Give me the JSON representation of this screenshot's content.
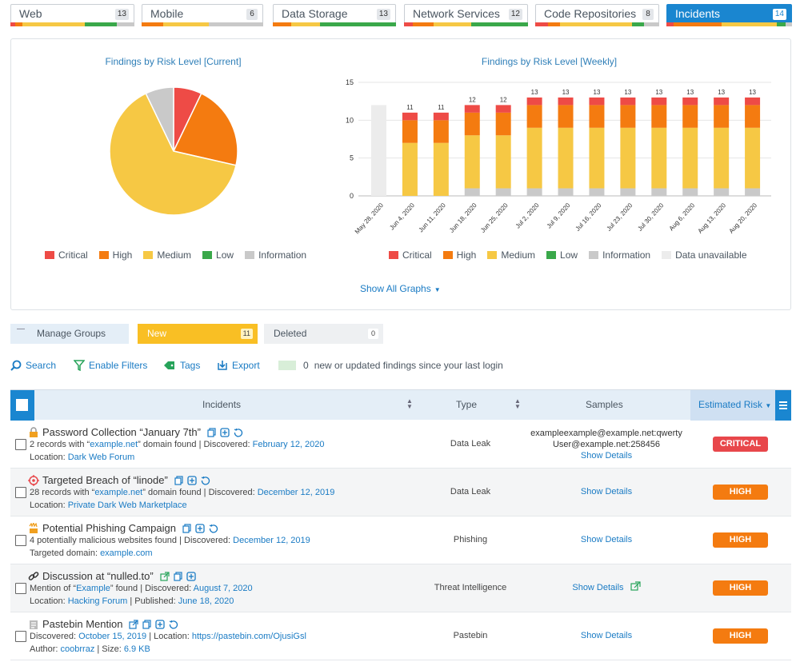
{
  "colors": {
    "critical": "#ee4b46",
    "high": "#f47b10",
    "medium": "#f6c844",
    "low": "#3aa84a",
    "information": "#c9c9c9",
    "unavailable": "#ececec",
    "accent": "#1a86d0"
  },
  "category_tabs": [
    {
      "label": "Web",
      "count": "13",
      "bar": [
        [
          0.04,
          "#ee4b46"
        ],
        [
          0.06,
          "#f47b10"
        ],
        [
          0.5,
          "#f6c844"
        ],
        [
          0.26,
          "#3aa84a"
        ],
        [
          0.14,
          "#c9c9c9"
        ]
      ]
    },
    {
      "label": "Mobile",
      "count": "6",
      "bar": [
        [
          0.18,
          "#f47b10"
        ],
        [
          0.37,
          "#f6c844"
        ],
        [
          0.45,
          "#c9c9c9"
        ]
      ]
    },
    {
      "label": "Data Storage",
      "count": "13",
      "bar": [
        [
          0.15,
          "#f47b10"
        ],
        [
          0.23,
          "#f6c844"
        ],
        [
          0.62,
          "#3aa84a"
        ]
      ]
    },
    {
      "label": "Network Services",
      "count": "12",
      "bar": [
        [
          0.07,
          "#ee4b46"
        ],
        [
          0.17,
          "#f47b10"
        ],
        [
          0.3,
          "#f6c844"
        ],
        [
          0.46,
          "#3aa84a"
        ]
      ]
    },
    {
      "label": "Code Repositories",
      "count": "8",
      "bar": [
        [
          0.1,
          "#ee4b46"
        ],
        [
          0.1,
          "#f47b10"
        ],
        [
          0.58,
          "#f6c844"
        ],
        [
          0.1,
          "#3aa84a"
        ],
        [
          0.12,
          "#c9c9c9"
        ]
      ]
    },
    {
      "label": "Incidents",
      "count": "14",
      "active": true,
      "bar": [
        [
          0.06,
          "#ee4b46"
        ],
        [
          0.38,
          "#f47b10"
        ],
        [
          0.44,
          "#f6c844"
        ],
        [
          0.07,
          "#3aa84a"
        ],
        [
          0.05,
          "#c9c9c9"
        ]
      ]
    }
  ],
  "chart_data": [
    {
      "type": "pie",
      "title": "Findings by Risk Level [Current]",
      "slices": [
        {
          "name": "Critical",
          "value": 1
        },
        {
          "name": "High",
          "value": 3
        },
        {
          "name": "Medium",
          "value": 9
        },
        {
          "name": "Low",
          "value": 0
        },
        {
          "name": "Information",
          "value": 1
        }
      ],
      "legend": [
        "Critical",
        "High",
        "Medium",
        "Low",
        "Information"
      ],
      "legend_position": "bottom"
    },
    {
      "type": "bar",
      "stacked": true,
      "title": "Findings by Risk Level [Weekly]",
      "categories": [
        "May 28, 2020",
        "Jun 4, 2020",
        "Jun 11, 2020",
        "Jun 18, 2020",
        "Jun 25, 2020",
        "Jul 2, 2020",
        "Jul 9, 2020",
        "Jul 16, 2020",
        "Jul 23, 2020",
        "Jul 30, 2020",
        "Aug 6, 2020",
        "Aug 13, 2020",
        "Aug 20, 2020"
      ],
      "ylim": [
        0,
        15
      ],
      "yticks": [
        "0",
        "5",
        "10",
        "15"
      ],
      "totals": [
        "",
        "11",
        "11",
        "12",
        "12",
        "13",
        "13",
        "13",
        "13",
        "13",
        "13",
        "13",
        "13"
      ],
      "series": [
        {
          "name": "Information",
          "values": [
            0,
            0,
            0,
            1,
            1,
            1,
            1,
            1,
            1,
            1,
            1,
            1,
            1
          ]
        },
        {
          "name": "Low",
          "values": [
            0,
            0,
            0,
            0,
            0,
            0,
            0,
            0,
            0,
            0,
            0,
            0,
            0
          ]
        },
        {
          "name": "Medium",
          "values": [
            0,
            7,
            7,
            7,
            7,
            8,
            8,
            8,
            8,
            8,
            8,
            8,
            8
          ]
        },
        {
          "name": "High",
          "values": [
            0,
            3,
            3,
            3,
            3,
            3,
            3,
            3,
            3,
            3,
            3,
            3,
            3
          ]
        },
        {
          "name": "Critical",
          "values": [
            0,
            1,
            1,
            1,
            1,
            1,
            1,
            1,
            1,
            1,
            1,
            1,
            1
          ]
        },
        {
          "name": "Data unavailable",
          "values": [
            12,
            0,
            0,
            0,
            0,
            0,
            0,
            0,
            0,
            0,
            0,
            0,
            0
          ]
        }
      ],
      "legend": [
        "Critical",
        "High",
        "Medium",
        "Low",
        "Information",
        "Data unavailable"
      ],
      "grid": true,
      "legend_position": "bottom"
    }
  ],
  "show_all_graphs": "Show All Graphs",
  "groups": {
    "manage": "Manage Groups",
    "new_label": "New",
    "new_count": "11",
    "deleted_label": "Deleted",
    "deleted_count": "0"
  },
  "toolbar": {
    "search": "Search",
    "filters": "Enable Filters",
    "tags": "Tags",
    "export": "Export",
    "note_count": "0",
    "note_text": "new or updated findings since your last login"
  },
  "table": {
    "col_incidents": "Incidents",
    "col_type": "Type",
    "col_samples": "Samples",
    "col_risk": "Estimated Risk",
    "show_details": "Show Details",
    "rows": [
      {
        "title": "Password Collection “January 7th”",
        "icon": "lock-icon",
        "l2_pre": "2 records with “",
        "l2_link": "example.net",
        "l2_mid": "” domain found | Discovered: ",
        "l2_date": "February 12, 2020",
        "l3_pre": "Location: ",
        "l3_link": "Dark Web Forum",
        "type": "Data Leak",
        "samples": [
          "exampleexample@example.net:qwerty",
          "User@example.net:258456"
        ],
        "risk": "CRITICAL"
      },
      {
        "title": "Targeted Breach of “linode”",
        "icon": "target-icon",
        "l2_pre": "28 records with “",
        "l2_link": "example.net",
        "l2_mid": "” domain found | Discovered: ",
        "l2_date": "December 12, 2019",
        "l3_pre": "Location: ",
        "l3_link": "Private Dark Web Marketplace",
        "type": "Data Leak",
        "risk": "HIGH"
      },
      {
        "title": "Potential Phishing Campaign",
        "icon": "phishing-icon",
        "l2_pre": "4 potentially malicious websites found | Discovered: ",
        "l2_date": "December 12, 2019",
        "l3_pre": "Targeted domain: ",
        "l3_link": "example.com",
        "type": "Phishing",
        "risk": "HIGH"
      },
      {
        "title": "Discussion at “nulled.to”",
        "icon": "link-icon",
        "l2_pre": "Mention of “",
        "l2_link": "Example",
        "l2_mid": "” found | Discovered: ",
        "l2_date": "August 7, 2020",
        "l3_pre": "Location: ",
        "l3_link": "Hacking Forum",
        "l3_mid": " | Published: ",
        "l3_date": "June 18, 2020",
        "type": "Threat Intelligence",
        "risk": "HIGH"
      },
      {
        "title": "Pastebin Mention",
        "icon": "pastebin-icon",
        "l2_pre": "Discovered: ",
        "l2_date": "October 15, 2019",
        "l2_mid2": " | Location: ",
        "l2_url": "https://pastebin.com/OjusiGsl",
        "l3_pre": "Author: ",
        "l3_link": "coobrraz",
        "l3_mid": " | Size: ",
        "l3_size": "6.9 KB",
        "type": "Pastebin",
        "risk": "HIGH"
      }
    ]
  }
}
